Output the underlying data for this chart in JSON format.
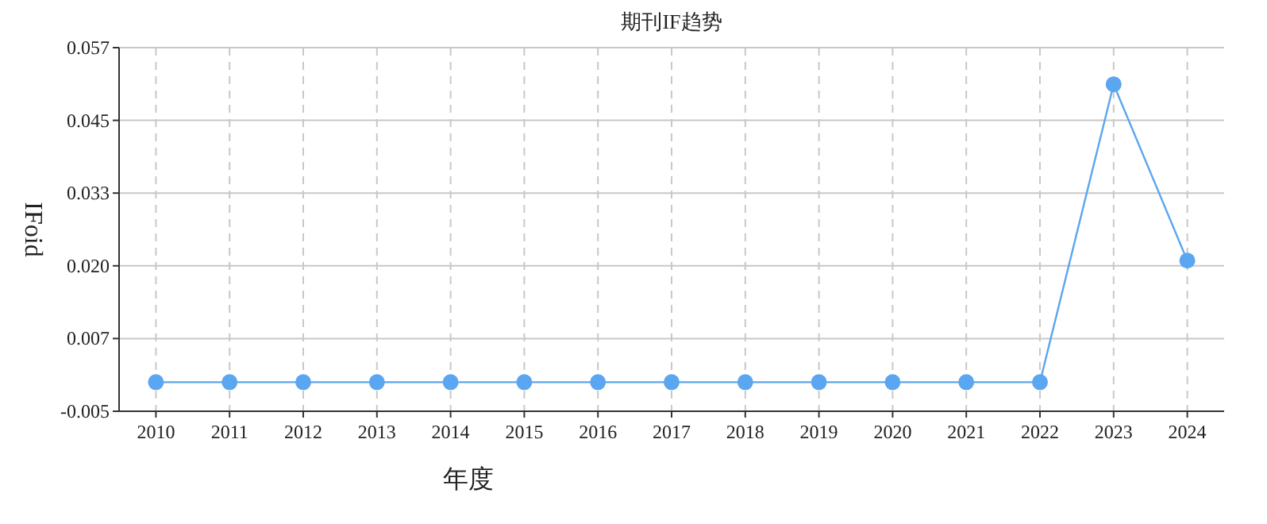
{
  "chart_data": {
    "type": "line",
    "title": "期刊IF趋势",
    "xlabel": "年度",
    "ylabel": "IFoid",
    "categories": [
      "2010",
      "2011",
      "2012",
      "2013",
      "2014",
      "2015",
      "2016",
      "2017",
      "2018",
      "2019",
      "2020",
      "2021",
      "2022",
      "2023",
      "2024"
    ],
    "series": [
      {
        "color": "#5aa6f0",
        "values": [
          0,
          0,
          0,
          0,
          0,
          0,
          0,
          0,
          0,
          0,
          0,
          0,
          0,
          0.0512,
          0.0209
        ]
      }
    ],
    "ylim": [
      -0.005,
      0.0575
    ],
    "yticks": [
      {
        "value": -0.005,
        "label": "-0.005"
      },
      {
        "value": 0.0075,
        "label": "0.007"
      },
      {
        "value": 0.02,
        "label": "0.020"
      },
      {
        "value": 0.0325,
        "label": "0.033"
      },
      {
        "value": 0.045,
        "label": "0.045"
      },
      {
        "value": 0.0575,
        "label": "0.057"
      }
    ],
    "grid": true,
    "marker": "circle",
    "line_style": "solid"
  }
}
